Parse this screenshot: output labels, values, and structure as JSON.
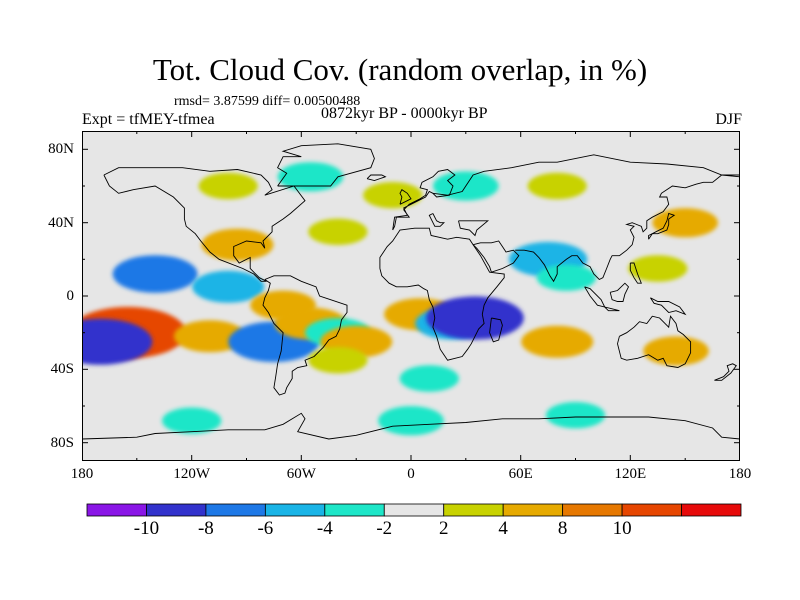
{
  "title": "Tot. Cloud Cov. (random overlap, in %)",
  "stats": "rmsd= 3.87599 diff= 0.00500488",
  "experiment": "Expt = tfMEY-tfmea",
  "period": "0872kyr BP - 0000kyr BP",
  "season": "DJF",
  "lat_ticks": [
    "80N",
    "40N",
    "0",
    "40S",
    "80S"
  ],
  "lon_ticks": [
    "180",
    "120W",
    "60W",
    "0",
    "60E",
    "120E",
    "180"
  ],
  "colorbar": {
    "labels": [
      "-10",
      "-8",
      "-6",
      "-4",
      "-2",
      "2",
      "4",
      "8",
      "10"
    ],
    "colors": [
      "#8a16e6",
      "#3232cc",
      "#1e78e6",
      "#1ab4e6",
      "#1ee6c8",
      "#e6e6e6",
      "#c8d200",
      "#e6aa00",
      "#e67800",
      "#e64600",
      "#e60a0a"
    ]
  },
  "chart_data": {
    "type": "heatmap",
    "variable": "Tot. Cloud Cov. (random overlap, in %)",
    "contour_levels": [
      -10,
      -8,
      -6,
      -4,
      -2,
      2,
      4,
      8,
      10
    ],
    "xlim": [
      -180,
      180
    ],
    "ylim": [
      -90,
      90
    ],
    "regions": [
      {
        "lon": -155,
        "lat": -20,
        "value": 12
      },
      {
        "lon": -170,
        "lat": -25,
        "value": -10
      },
      {
        "lon": -140,
        "lat": 12,
        "value": -7
      },
      {
        "lon": -100,
        "lat": 5,
        "value": -5
      },
      {
        "lon": -95,
        "lat": 28,
        "value": 5
      },
      {
        "lon": -110,
        "lat": -22,
        "value": 5
      },
      {
        "lon": -75,
        "lat": -25,
        "value": -8
      },
      {
        "lon": -70,
        "lat": -5,
        "value": 4
      },
      {
        "lon": -55,
        "lat": -15,
        "value": 5
      },
      {
        "lon": -40,
        "lat": -20,
        "value": -4
      },
      {
        "lon": -30,
        "lat": -25,
        "value": 5
      },
      {
        "lon": -40,
        "lat": -35,
        "value": 3
      },
      {
        "lon": 5,
        "lat": -10,
        "value": 5
      },
      {
        "lon": 22,
        "lat": -15,
        "value": -5
      },
      {
        "lon": 35,
        "lat": -12,
        "value": -9
      },
      {
        "lon": 10,
        "lat": -45,
        "value": -3
      },
      {
        "lon": 75,
        "lat": 20,
        "value": -6
      },
      {
        "lon": 85,
        "lat": 10,
        "value": -3
      },
      {
        "lon": 80,
        "lat": -25,
        "value": 5
      },
      {
        "lon": 150,
        "lat": 40,
        "value": 4
      },
      {
        "lon": 145,
        "lat": -30,
        "value": 4
      },
      {
        "lon": 135,
        "lat": 15,
        "value": 3
      },
      {
        "lon": -10,
        "lat": 55,
        "value": 3
      },
      {
        "lon": -55,
        "lat": 65,
        "value": -4
      },
      {
        "lon": 30,
        "lat": 60,
        "value": -4
      },
      {
        "lon": 80,
        "lat": 60,
        "value": 3
      },
      {
        "lon": -100,
        "lat": 60,
        "value": 3
      },
      {
        "lon": -40,
        "lat": 35,
        "value": 3
      },
      {
        "lon": 0,
        "lat": -68,
        "value": -4
      },
      {
        "lon": 90,
        "lat": -65,
        "value": -3
      },
      {
        "lon": -120,
        "lat": -68,
        "value": -3
      }
    ]
  }
}
